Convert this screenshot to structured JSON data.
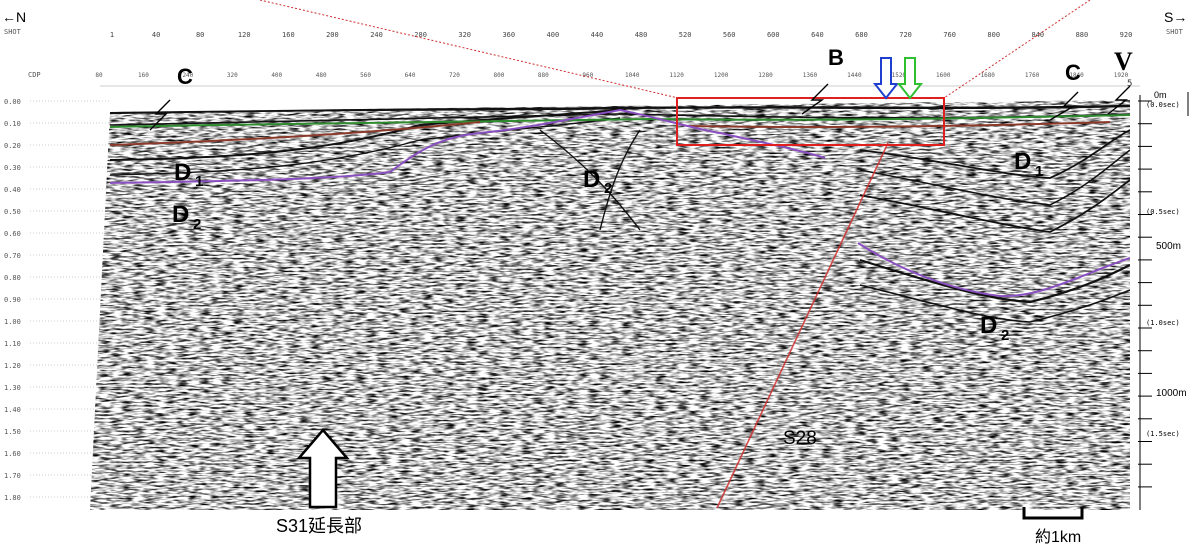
{
  "direction": {
    "left": "←N",
    "right": "S→"
  },
  "shot_label": "SHOT",
  "shot_ticks": [
    "1",
    "40",
    "80",
    "120",
    "160",
    "200",
    "240",
    "280",
    "320",
    "360",
    "400",
    "440",
    "480",
    "520",
    "560",
    "600",
    "640",
    "680",
    "720",
    "760",
    "800",
    "840",
    "880",
    "920"
  ],
  "cdp_label": "CDP",
  "cdp_ticks": [
    "80",
    "160",
    "240",
    "320",
    "400",
    "480",
    "560",
    "640",
    "720",
    "800",
    "880",
    "960",
    "1040",
    "1120",
    "1200",
    "1280",
    "1360",
    "1440",
    "1520",
    "1600",
    "1680",
    "1760",
    "1840",
    "1920"
  ],
  "time_ticks": [
    "0.00",
    "0.10",
    "0.20",
    "0.30",
    "0.40",
    "0.50",
    "0.60",
    "0.70",
    "0.80",
    "0.90",
    "1.00",
    "1.10",
    "1.20",
    "1.30",
    "1.40",
    "1.50",
    "1.60",
    "1.70",
    "1.80"
  ],
  "right_scale": {
    "depth_0": "0m",
    "time_0": "(0.0sec)",
    "time_05": "(0.5sec)",
    "depth_500": "500m",
    "time_10": "(1.0sec)",
    "depth_1000": "1000m",
    "time_15": "(1.5sec)",
    "top_mark": "5"
  },
  "unit_labels": {
    "C_left": "C",
    "C_right": "C",
    "B": "B",
    "V": "V",
    "D1_left": "D",
    "D1_left_sub": "1",
    "D1_right": "D",
    "D1_right_sub": "1",
    "D2_left": "D",
    "D2_left_sub": "2",
    "D2_center": "D",
    "D2_center_sub": "2",
    "D2_right": "D",
    "D2_right_sub": "2"
  },
  "line_label": "S28",
  "bottom_label": "S31延長部",
  "scale_bar_label": "約1km",
  "colors": {
    "green_horizon": "#2e8b2e",
    "brown_horizon": "#8b3a2a",
    "purple_horizon": "#8a4fc0",
    "highlight_box": "#e02020",
    "leader_line": "#d03030",
    "blue_arrow": "#1f3fd0",
    "green_arrow": "#2fc02f"
  }
}
